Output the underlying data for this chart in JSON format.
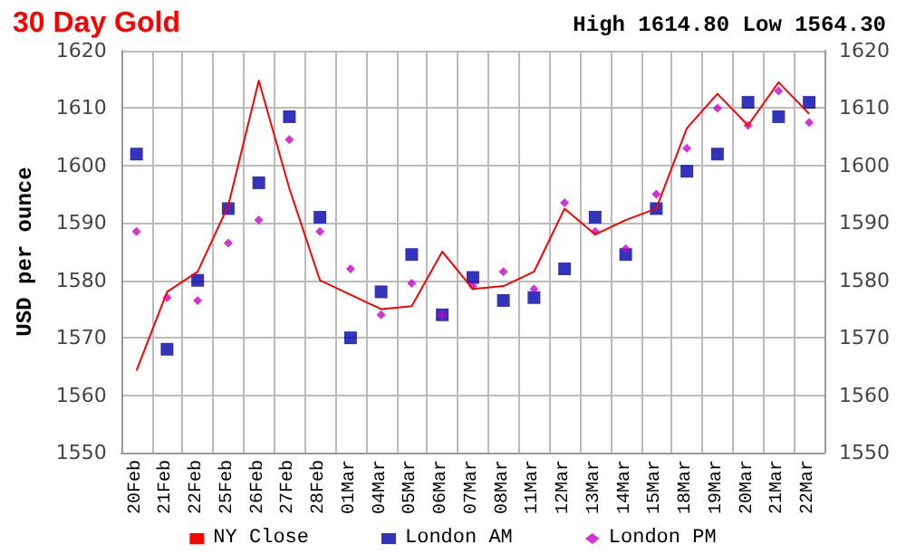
{
  "chart_data": {
    "type": "line",
    "title": "30 Day Gold",
    "subtitle": "High 1614.80 Low 1564.30",
    "ylabel": "USD per ounce",
    "categories": [
      "20Feb",
      "21Feb",
      "22Feb",
      "25Feb",
      "26Feb",
      "27Feb",
      "28Feb",
      "01Mar",
      "04Mar",
      "05Mar",
      "06Mar",
      "07Mar",
      "08Mar",
      "11Mar",
      "12Mar",
      "13Mar",
      "14Mar",
      "15Mar",
      "18Mar",
      "19Mar",
      "20Mar",
      "21Mar",
      "22Mar"
    ],
    "series": [
      {
        "name": "NY Close",
        "type": "line",
        "marker": "none",
        "color": "#ff0000",
        "values": [
          1564.3,
          1578,
          1581.5,
          1593,
          1614.8,
          1596,
          1580,
          1577.5,
          1575,
          1575.5,
          1585,
          1578.5,
          1579,
          1581.5,
          1592.5,
          1588,
          1590.5,
          1592.5,
          1606.5,
          1612.5,
          1607,
          1614.5,
          1609
        ]
      },
      {
        "name": "London AM",
        "type": "scatter",
        "marker": "square",
        "color": "#0000aa",
        "values": [
          1602,
          1568,
          1580,
          1592.5,
          1597,
          1608.5,
          1591,
          1570,
          1578,
          1584.5,
          1574,
          1580.5,
          1576.5,
          1577,
          1582,
          1591,
          1584.5,
          1592.5,
          1599,
          1602,
          1611,
          1608.5,
          1611
        ]
      },
      {
        "name": "London PM",
        "type": "scatter",
        "marker": "diamond",
        "color": "#cc00cc",
        "values": [
          1588.5,
          1577,
          1576.5,
          1586.5,
          1590.5,
          1604.5,
          1588.5,
          1582,
          1574,
          1579.5,
          1574,
          1579,
          1581.5,
          1578.5,
          1593.5,
          1588.5,
          1585.5,
          1595,
          1603,
          1610,
          1607,
          1613,
          1607.5
        ]
      }
    ],
    "ylim": [
      1550,
      1620
    ],
    "yticks": [
      1550,
      1560,
      1570,
      1580,
      1590,
      1600,
      1610,
      1620
    ],
    "y2lim": [
      1550,
      1620
    ],
    "y2ticks": [
      1550,
      1560,
      1570,
      1580,
      1590,
      1600,
      1610,
      1620
    ],
    "grid": true,
    "legend": "bottom"
  }
}
